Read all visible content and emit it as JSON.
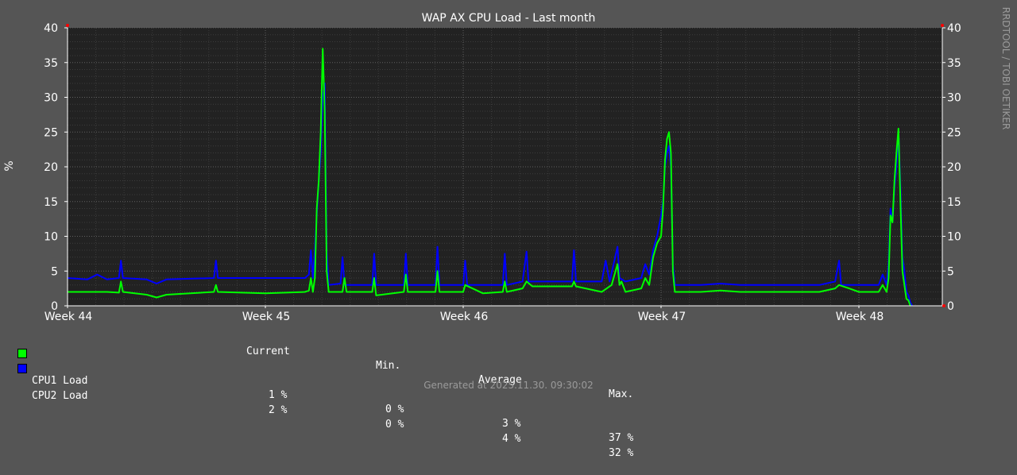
{
  "chart_data": {
    "type": "line",
    "title": "WAP AX CPU Load - Last month",
    "ylabel": "%",
    "ylim": [
      0,
      40
    ],
    "yticks": [
      0,
      5,
      10,
      15,
      20,
      25,
      30,
      35,
      40
    ],
    "xlim": [
      0,
      4.5
    ],
    "x_ticks": [
      {
        "label": "Week 44",
        "x": 0
      },
      {
        "label": "Week 45",
        "x": 1
      },
      {
        "label": "Week 46",
        "x": 2
      },
      {
        "label": "Week 47",
        "x": 3
      },
      {
        "label": "Week 48",
        "x": 4
      }
    ],
    "grid": true,
    "series": [
      {
        "name": "CPU1 Load",
        "color": "#00ff00",
        "points": [
          [
            0,
            2
          ],
          [
            0.2,
            2
          ],
          [
            0.26,
            1.9
          ],
          [
            0.27,
            3.5
          ],
          [
            0.28,
            2
          ],
          [
            0.4,
            1.6
          ],
          [
            0.45,
            1.2
          ],
          [
            0.5,
            1.6
          ],
          [
            0.74,
            2
          ],
          [
            0.75,
            3
          ],
          [
            0.76,
            2
          ],
          [
            1.0,
            1.8
          ],
          [
            1.2,
            2
          ],
          [
            1.22,
            2.2
          ],
          [
            1.23,
            4
          ],
          [
            1.24,
            2
          ],
          [
            1.25,
            4
          ],
          [
            1.26,
            14
          ],
          [
            1.27,
            18
          ],
          [
            1.28,
            25
          ],
          [
            1.29,
            37
          ],
          [
            1.3,
            28
          ],
          [
            1.31,
            5
          ],
          [
            1.32,
            2
          ],
          [
            1.39,
            2
          ],
          [
            1.4,
            4
          ],
          [
            1.41,
            2
          ],
          [
            1.54,
            2
          ],
          [
            1.55,
            4
          ],
          [
            1.56,
            1.5
          ],
          [
            1.7,
            2
          ],
          [
            1.71,
            4.5
          ],
          [
            1.72,
            2
          ],
          [
            1.86,
            2
          ],
          [
            1.87,
            5
          ],
          [
            1.88,
            2
          ],
          [
            2.0,
            2
          ],
          [
            2.01,
            3
          ],
          [
            2.1,
            1.8
          ],
          [
            2.2,
            2
          ],
          [
            2.21,
            3.5
          ],
          [
            2.22,
            2
          ],
          [
            2.3,
            2.5
          ],
          [
            2.32,
            3.5
          ],
          [
            2.35,
            2.8
          ],
          [
            2.55,
            2.8
          ],
          [
            2.56,
            3.5
          ],
          [
            2.57,
            2.8
          ],
          [
            2.7,
            2
          ],
          [
            2.75,
            3
          ],
          [
            2.78,
            6
          ],
          [
            2.79,
            3
          ],
          [
            2.8,
            3.5
          ],
          [
            2.82,
            2
          ],
          [
            2.9,
            2.5
          ],
          [
            2.92,
            4
          ],
          [
            2.94,
            3
          ],
          [
            2.96,
            7
          ],
          [
            2.98,
            9
          ],
          [
            3.0,
            10
          ],
          [
            3.01,
            14
          ],
          [
            3.02,
            21
          ],
          [
            3.03,
            24
          ],
          [
            3.04,
            25
          ],
          [
            3.05,
            22
          ],
          [
            3.06,
            5
          ],
          [
            3.07,
            2
          ],
          [
            3.2,
            2
          ],
          [
            3.3,
            2.2
          ],
          [
            3.4,
            2
          ],
          [
            3.6,
            2
          ],
          [
            3.8,
            2
          ],
          [
            3.88,
            2.5
          ],
          [
            3.9,
            3
          ],
          [
            3.95,
            2.5
          ],
          [
            4.0,
            2
          ],
          [
            4.1,
            2
          ],
          [
            4.12,
            3
          ],
          [
            4.14,
            2
          ],
          [
            4.15,
            4
          ],
          [
            4.16,
            13
          ],
          [
            4.17,
            12
          ],
          [
            4.18,
            18
          ],
          [
            4.19,
            22
          ],
          [
            4.2,
            25.5
          ],
          [
            4.21,
            15
          ],
          [
            4.22,
            5
          ],
          [
            4.23,
            3
          ],
          [
            4.24,
            1
          ],
          [
            4.25,
            0.8
          ],
          [
            4.26,
            0
          ]
        ]
      },
      {
        "name": "CPU2 Load",
        "color": "#0000ff",
        "points": [
          [
            0,
            4
          ],
          [
            0.1,
            3.8
          ],
          [
            0.15,
            4.5
          ],
          [
            0.2,
            3.8
          ],
          [
            0.26,
            4
          ],
          [
            0.27,
            6.5
          ],
          [
            0.28,
            4
          ],
          [
            0.4,
            3.8
          ],
          [
            0.45,
            3.2
          ],
          [
            0.5,
            3.8
          ],
          [
            0.74,
            4
          ],
          [
            0.75,
            6.5
          ],
          [
            0.76,
            4
          ],
          [
            1.0,
            4
          ],
          [
            1.2,
            4
          ],
          [
            1.22,
            4.5
          ],
          [
            1.23,
            8
          ],
          [
            1.24,
            4
          ],
          [
            1.25,
            8
          ],
          [
            1.26,
            13
          ],
          [
            1.27,
            18
          ],
          [
            1.28,
            22
          ],
          [
            1.29,
            30
          ],
          [
            1.3,
            32
          ],
          [
            1.31,
            8
          ],
          [
            1.32,
            3
          ],
          [
            1.38,
            3.2
          ],
          [
            1.39,
            7
          ],
          [
            1.4,
            3
          ],
          [
            1.54,
            3
          ],
          [
            1.55,
            7.5
          ],
          [
            1.56,
            3
          ],
          [
            1.7,
            3
          ],
          [
            1.71,
            7.5
          ],
          [
            1.72,
            3
          ],
          [
            1.86,
            3
          ],
          [
            1.87,
            8.5
          ],
          [
            1.88,
            3
          ],
          [
            2.0,
            3
          ],
          [
            2.01,
            6.5
          ],
          [
            2.02,
            3
          ],
          [
            2.2,
            3
          ],
          [
            2.21,
            7.5
          ],
          [
            2.22,
            3
          ],
          [
            2.3,
            3.5
          ],
          [
            2.32,
            7.8
          ],
          [
            2.33,
            3.5
          ],
          [
            2.55,
            3.5
          ],
          [
            2.56,
            8
          ],
          [
            2.57,
            3.5
          ],
          [
            2.7,
            3.5
          ],
          [
            2.72,
            6.5
          ],
          [
            2.74,
            3.5
          ],
          [
            2.78,
            8.5
          ],
          [
            2.79,
            4
          ],
          [
            2.82,
            3.5
          ],
          [
            2.9,
            4
          ],
          [
            2.92,
            6
          ],
          [
            2.94,
            4.5
          ],
          [
            2.96,
            8
          ],
          [
            2.98,
            10
          ],
          [
            3.0,
            13
          ],
          [
            3.01,
            15
          ],
          [
            3.02,
            20
          ],
          [
            3.03,
            22
          ],
          [
            3.04,
            23
          ],
          [
            3.05,
            20
          ],
          [
            3.06,
            6
          ],
          [
            3.07,
            3
          ],
          [
            3.2,
            3
          ],
          [
            3.3,
            3.2
          ],
          [
            3.4,
            3
          ],
          [
            3.6,
            3
          ],
          [
            3.8,
            3
          ],
          [
            3.88,
            3.5
          ],
          [
            3.9,
            6.5
          ],
          [
            3.91,
            3
          ],
          [
            4.0,
            3
          ],
          [
            4.1,
            3
          ],
          [
            4.12,
            4.5
          ],
          [
            4.14,
            3
          ],
          [
            4.15,
            6
          ],
          [
            4.16,
            14
          ],
          [
            4.17,
            12
          ],
          [
            4.18,
            17
          ],
          [
            4.19,
            20
          ],
          [
            4.2,
            25
          ],
          [
            4.21,
            17
          ],
          [
            4.22,
            7
          ],
          [
            4.23,
            5
          ],
          [
            4.24,
            2
          ],
          [
            4.25,
            1.5
          ],
          [
            4.26,
            0.5
          ],
          [
            4.27,
            0
          ]
        ]
      }
    ],
    "legend": {
      "headers": [
        "Current",
        "Min.",
        "Average",
        "Max."
      ],
      "rows": [
        {
          "name": "CPU1 Load",
          "color": "#00ff00",
          "values": [
            "1 %",
            "0 %",
            "3 %",
            "37 %"
          ]
        },
        {
          "name": "CPU2 Load",
          "color": "#0000ff",
          "values": [
            "2 %",
            "0 %",
            "4 %",
            "32 %"
          ]
        }
      ]
    }
  },
  "watermark": "RRDTOOL / TOBI OETIKER",
  "footer": "Generated at 2025.11.30. 09:30:02"
}
